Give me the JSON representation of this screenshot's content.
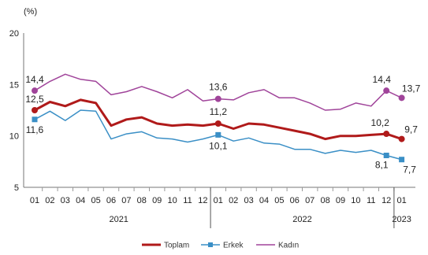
{
  "chart_data": {
    "type": "line",
    "unit_label": "(%)",
    "xlabel": "",
    "ylabel": "",
    "ylim": [
      5,
      20
    ],
    "yticks": [
      "5",
      "10",
      "15",
      "20"
    ],
    "grid": false,
    "legend_position": "bottom",
    "categories": [
      "01",
      "02",
      "03",
      "04",
      "05",
      "06",
      "07",
      "08",
      "09",
      "10",
      "11",
      "12",
      "01",
      "02",
      "03",
      "04",
      "05",
      "06",
      "07",
      "08",
      "09",
      "10",
      "11",
      "12",
      "01"
    ],
    "year_groups": [
      {
        "label": "2021",
        "start": 0,
        "end": 11
      },
      {
        "label": "2022",
        "start": 12,
        "end": 23
      },
      {
        "label": "2023",
        "start": 24,
        "end": 24
      }
    ],
    "series": [
      {
        "name": "Toplam",
        "color": "#b01a1a",
        "marker": "circle",
        "values": [
          12.5,
          13.3,
          12.9,
          13.5,
          13.2,
          11.0,
          11.6,
          11.8,
          11.2,
          11.0,
          11.1,
          11.0,
          11.2,
          10.7,
          11.2,
          11.1,
          10.8,
          10.5,
          10.2,
          9.7,
          10.0,
          10.0,
          10.1,
          10.2,
          9.7
        ],
        "labeled": {
          "0": "12,5",
          "12": "11,2",
          "23": "10,2",
          "24": "9,7"
        },
        "marked": [
          0,
          12,
          23,
          24
        ]
      },
      {
        "name": "Erkek",
        "color": "#3a8fc6",
        "marker": "square",
        "values": [
          11.6,
          12.4,
          11.5,
          12.5,
          12.4,
          9.7,
          10.2,
          10.4,
          9.8,
          9.7,
          9.4,
          9.7,
          10.1,
          9.5,
          9.8,
          9.3,
          9.2,
          8.7,
          8.7,
          8.3,
          8.6,
          8.4,
          8.6,
          8.1,
          7.7
        ],
        "labeled": {
          "0": "11,6",
          "12": "10,1",
          "23": "8,1",
          "24": "7,7"
        },
        "marked": [
          0,
          12,
          23,
          24
        ]
      },
      {
        "name": "Kadın",
        "color": "#a0449a",
        "marker": "circle",
        "values": [
          14.4,
          15.3,
          16.0,
          15.5,
          15.3,
          14.0,
          14.3,
          14.8,
          14.3,
          13.7,
          14.5,
          13.4,
          13.6,
          13.5,
          14.2,
          14.5,
          13.7,
          13.7,
          13.2,
          12.5,
          12.6,
          13.2,
          12.9,
          14.4,
          13.7
        ],
        "labeled": {
          "0": "14,4",
          "12": "13,6",
          "23": "14,4",
          "24": "13,7"
        },
        "marked": [
          0,
          12,
          23,
          24
        ]
      }
    ]
  }
}
